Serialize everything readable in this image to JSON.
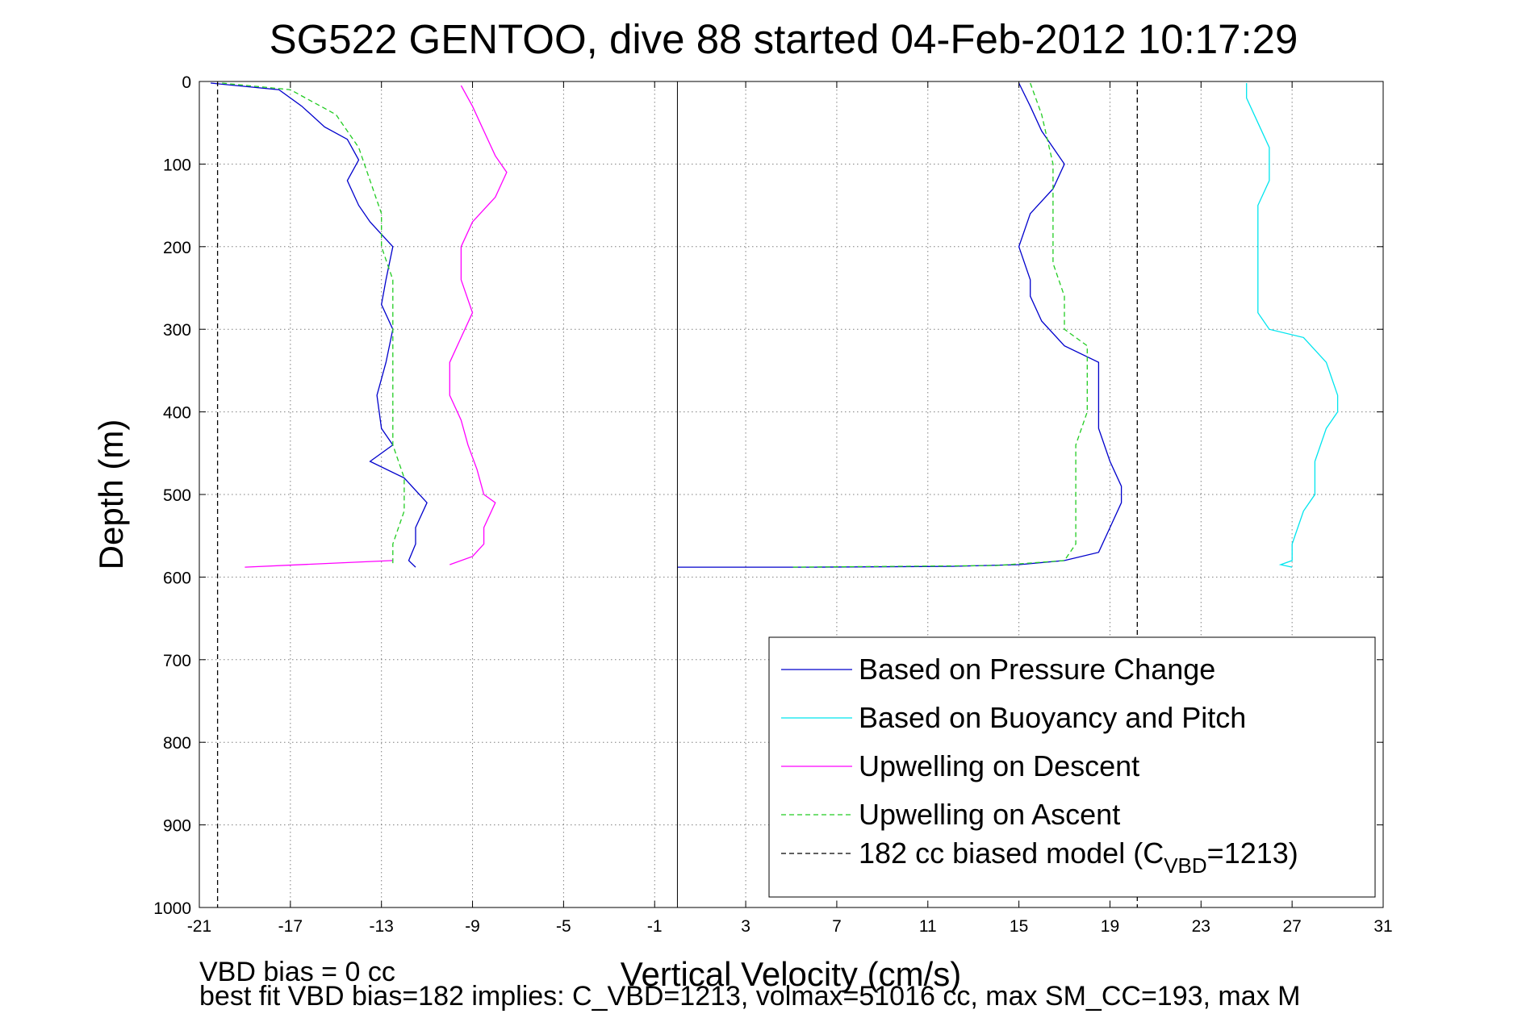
{
  "chart_data": {
    "type": "line",
    "title": "SG522 GENTOO, dive 88 started 04-Feb-2012 10:17:29",
    "xlabel": "Vertical Velocity (cm/s)",
    "ylabel": "Depth (m)",
    "xlim": [
      -21,
      31
    ],
    "ylim": [
      0,
      1000
    ],
    "y_reversed": true,
    "grid": true,
    "x_ticks": [
      "-21",
      "-17",
      "-13",
      "-9",
      "-5",
      "-1",
      "3",
      "7",
      "11",
      "15",
      "19",
      "23",
      "27",
      "31"
    ],
    "y_ticks": [
      "0",
      "100",
      "200",
      "300",
      "400",
      "500",
      "600",
      "700",
      "800",
      "900",
      "1000"
    ],
    "legend_position": "bottom-right",
    "zero_line_x": 0,
    "series": [
      {
        "name": "Based on Pressure Change",
        "color": "#0000cc",
        "style": "solid",
        "segments": [
          [
            [
              -20.5,
              2
            ],
            [
              -17.5,
              10
            ],
            [
              -16.5,
              30
            ],
            [
              -15.5,
              55
            ],
            [
              -14.5,
              70
            ],
            [
              -14,
              95
            ],
            [
              -14.5,
              120
            ],
            [
              -14,
              150
            ],
            [
              -13.5,
              170
            ],
            [
              -12.5,
              200
            ],
            [
              -12.8,
              240
            ],
            [
              -13,
              270
            ],
            [
              -12.5,
              300
            ],
            [
              -12.8,
              340
            ],
            [
              -13.2,
              380
            ],
            [
              -13,
              420
            ],
            [
              -12.5,
              440
            ],
            [
              -13.5,
              460
            ],
            [
              -12,
              480
            ],
            [
              -11,
              510
            ],
            [
              -11.5,
              540
            ],
            [
              -11.5,
              560
            ],
            [
              -11.8,
              580
            ],
            [
              -11.5,
              588
            ]
          ],
          [
            [
              15,
              2
            ],
            [
              15.5,
              30
            ],
            [
              16,
              60
            ],
            [
              17,
              100
            ],
            [
              16.5,
              130
            ],
            [
              15.5,
              160
            ],
            [
              15,
              200
            ],
            [
              15.5,
              240
            ],
            [
              15.5,
              260
            ],
            [
              16,
              290
            ],
            [
              17,
              320
            ],
            [
              18.5,
              340
            ],
            [
              18.5,
              370
            ],
            [
              18.5,
              400
            ],
            [
              18.5,
              420
            ],
            [
              19,
              460
            ],
            [
              19.5,
              490
            ],
            [
              19.5,
              510
            ],
            [
              19,
              540
            ],
            [
              18.5,
              570
            ],
            [
              17,
              580
            ],
            [
              15,
              585
            ],
            [
              12,
              587
            ],
            [
              6,
              588
            ],
            [
              0,
              588
            ]
          ]
        ]
      },
      {
        "name": "Based on Buoyancy and Pitch",
        "color": "#00e5ee",
        "style": "solid",
        "segments": [
          [
            [
              25,
              2
            ],
            [
              25,
              20
            ],
            [
              25.5,
              50
            ],
            [
              26,
              80
            ],
            [
              26,
              120
            ],
            [
              25.5,
              150
            ],
            [
              25.5,
              200
            ],
            [
              25.5,
              240
            ],
            [
              25.5,
              280
            ],
            [
              26,
              300
            ],
            [
              27.5,
              310
            ],
            [
              28.5,
              340
            ],
            [
              29,
              380
            ],
            [
              29,
              400
            ],
            [
              28.5,
              420
            ],
            [
              28,
              460
            ],
            [
              28,
              500
            ],
            [
              27.5,
              520
            ],
            [
              27,
              560
            ],
            [
              27,
              580
            ],
            [
              26.5,
              585
            ],
            [
              27,
              588
            ]
          ]
        ]
      },
      {
        "name": "Upwelling on Descent",
        "color": "#ff00ff",
        "style": "solid",
        "segments": [
          [
            [
              -9.5,
              5
            ],
            [
              -9,
              30
            ],
            [
              -8.5,
              60
            ],
            [
              -8,
              90
            ],
            [
              -7.5,
              110
            ],
            [
              -8,
              140
            ],
            [
              -9,
              170
            ],
            [
              -9.5,
              200
            ],
            [
              -9.5,
              240
            ],
            [
              -9,
              280
            ],
            [
              -9.5,
              310
            ],
            [
              -10,
              340
            ],
            [
              -10,
              380
            ],
            [
              -9.5,
              410
            ],
            [
              -9.2,
              440
            ],
            [
              -8.8,
              470
            ],
            [
              -8.5,
              500
            ],
            [
              -8,
              510
            ],
            [
              -8.5,
              540
            ],
            [
              -8.5,
              560
            ],
            [
              -9,
              575
            ],
            [
              -10,
              585
            ]
          ],
          [
            [
              -12.5,
              580
            ],
            [
              -19,
              588
            ]
          ]
        ]
      },
      {
        "name": "Upwelling on Ascent",
        "color": "#22cc22",
        "style": "dashed",
        "segments": [
          [
            [
              -20,
              2
            ],
            [
              -17,
              10
            ],
            [
              -15,
              40
            ],
            [
              -14,
              80
            ],
            [
              -13.5,
              120
            ],
            [
              -13,
              160
            ],
            [
              -13,
              200
            ],
            [
              -12.5,
              240
            ],
            [
              -12.5,
              280
            ],
            [
              -12.5,
              320
            ],
            [
              -12.5,
              360
            ],
            [
              -12.5,
              400
            ],
            [
              -12.5,
              440
            ],
            [
              -12,
              480
            ],
            [
              -12,
              520
            ],
            [
              -12.5,
              560
            ],
            [
              -12.5,
              585
            ]
          ],
          [
            [
              15.5,
              2
            ],
            [
              16,
              40
            ],
            [
              16.5,
              100
            ],
            [
              16.5,
              160
            ],
            [
              16.5,
              220
            ],
            [
              17,
              260
            ],
            [
              17,
              300
            ],
            [
              18,
              320
            ],
            [
              18,
              360
            ],
            [
              18,
              400
            ],
            [
              17.5,
              440
            ],
            [
              17.5,
              480
            ],
            [
              17.5,
              520
            ],
            [
              17.5,
              560
            ],
            [
              17,
              580
            ],
            [
              14,
              586
            ],
            [
              5,
              588
            ]
          ]
        ]
      },
      {
        "name": "182 cc biased model (C_VBD=1213)",
        "color": "#000000",
        "style": "dashed",
        "segments": [
          [
            [
              -20.2,
              0
            ],
            [
              -20.2,
              1000
            ]
          ],
          [
            [
              20.2,
              0
            ],
            [
              20.2,
              1000
            ]
          ]
        ]
      }
    ],
    "legend_entries": [
      {
        "label": "Based on Pressure Change",
        "color": "#0000cc",
        "style": "solid"
      },
      {
        "label": "Based on Buoyancy and Pitch",
        "color": "#00e5ee",
        "style": "solid"
      },
      {
        "label": "Upwelling on Descent",
        "color": "#ff00ff",
        "style": "solid"
      },
      {
        "label": "Upwelling on Ascent",
        "color": "#22cc22",
        "style": "dashed"
      },
      {
        "label_main": "182 cc biased model (C",
        "label_sub": "VBD",
        "label_tail": "=1213)",
        "color": "#000000",
        "style": "dashed"
      }
    ],
    "footer": {
      "line1": "VBD bias = 0 cc",
      "line2": "best fit VBD bias=182 implies: C_VBD=1213, volmax=51016 cc, max SM_CC=193, max M"
    }
  }
}
